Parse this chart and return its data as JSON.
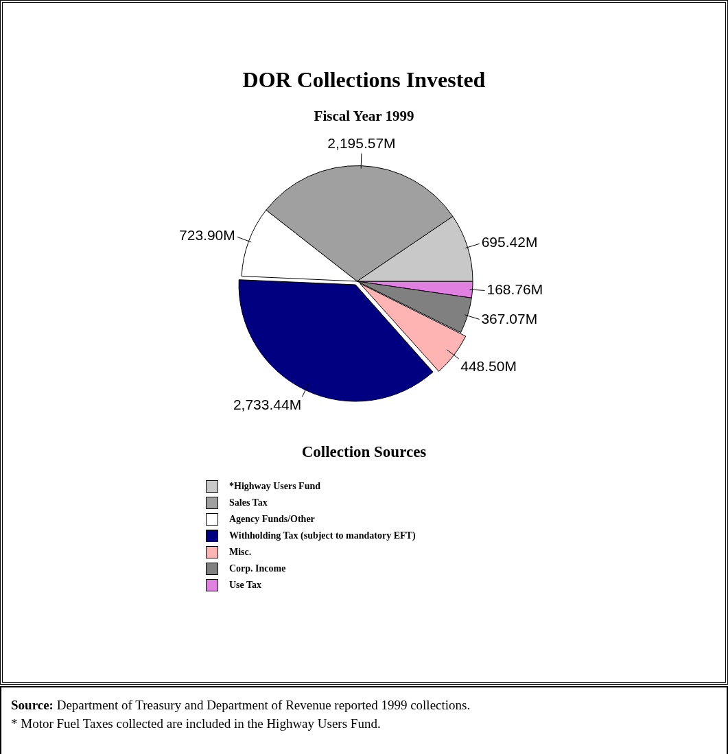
{
  "chart_data": {
    "type": "pie",
    "title": "DOR Collections Invested",
    "subtitle": "Fiscal Year 1999",
    "legend_title": "Collection Sources",
    "legend": "bottom",
    "categories": [
      "*Highway Users Fund",
      "Sales Tax",
      "Agency Funds/Other",
      "Withholding Tax (subject to mandatory EFT)",
      "Misc.",
      "Corp. Income",
      "Use Tax"
    ],
    "values": [
      695.42,
      2195.57,
      723.9,
      2733.44,
      448.5,
      367.07,
      168.76
    ],
    "value_labels": [
      "695.42M",
      "2,195.57M",
      "723.90M",
      "2,733.44M",
      "448.50M",
      "367.07M",
      "168.76M"
    ],
    "colors": [
      "#c8c8c8",
      "#a0a0a0",
      "#ffffff",
      "#000080",
      "#ffb4b4",
      "#808080",
      "#e080e0"
    ],
    "annotations": [
      "Source: Department of Treasury and Department of Revenue reported 1999 collections.",
      "* Motor Fuel Taxes collected are included in the Highway Users Fund."
    ]
  }
}
